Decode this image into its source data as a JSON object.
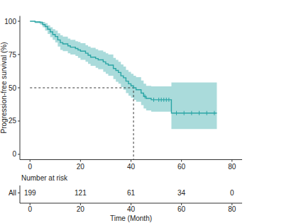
{
  "chart_data": {
    "type": "survival",
    "y_label": "Progression-free survival (%)",
    "x_label": "Time (Month)",
    "xlim": [
      -4,
      84
    ],
    "xticks": [
      0,
      20,
      40,
      60,
      80
    ],
    "ylim": [
      -4,
      104
    ],
    "yticks": [
      0,
      25,
      50,
      75,
      100
    ],
    "x": [
      0,
      2,
      4,
      5,
      6,
      7,
      8,
      9,
      10,
      11,
      12,
      13,
      15,
      16,
      18,
      19,
      20,
      22,
      23,
      24,
      26,
      27,
      29,
      30,
      31,
      33,
      34,
      35,
      36,
      37,
      38,
      39,
      40,
      41,
      42,
      44,
      45,
      46,
      48,
      56,
      74
    ],
    "series": [
      {
        "name": "All",
        "color": "#2aa5a5",
        "values": [
          100,
          99.5,
          99,
          97.5,
          96,
          94,
          92,
          90,
          88.5,
          86,
          84,
          83,
          81.5,
          80.5,
          79.5,
          78.5,
          77.5,
          76,
          74.5,
          73,
          72,
          71,
          69.5,
          68,
          67,
          64.5,
          63,
          61.5,
          59,
          57.5,
          55,
          53,
          51.5,
          50,
          48.5,
          46,
          43.5,
          42,
          41,
          31,
          31
        ],
        "upper": [
          100,
          100,
          100,
          99.5,
          98.5,
          97,
          95.5,
          94,
          93,
          91,
          89.5,
          88.5,
          87,
          86,
          85,
          84.5,
          83.5,
          82,
          81,
          80,
          79,
          78,
          77,
          76,
          75,
          72.5,
          71,
          69.5,
          67.5,
          66,
          63.5,
          62,
          60.5,
          59,
          58,
          55.5,
          53,
          51.5,
          51,
          54,
          54
        ],
        "lower": [
          100,
          98.5,
          97.5,
          95.5,
          93,
          90.5,
          88,
          86,
          84,
          81,
          78.5,
          77.5,
          76,
          75,
          74,
          72.5,
          71,
          69.5,
          68,
          66.5,
          65,
          64,
          62,
          60.5,
          59,
          56.5,
          54.5,
          53,
          50.5,
          48.5,
          46,
          44,
          42.5,
          41,
          39.5,
          37,
          34.5,
          33,
          32,
          19,
          19
        ],
        "censored": {
          "x": [
            45.5,
            49,
            51,
            52,
            53,
            54,
            55,
            58,
            61,
            64,
            67,
            70,
            73
          ],
          "values": [
            43.5,
            41,
            41,
            41,
            41,
            41,
            41,
            31,
            31,
            31,
            31,
            31,
            31
          ]
        }
      }
    ],
    "median": {
      "x": 41,
      "y": 50
    },
    "risk_table": {
      "title": "Number at risk",
      "x": [
        0,
        20,
        40,
        60,
        80
      ],
      "rows": [
        {
          "name": "All",
          "values": [
            199,
            121,
            61,
            34,
            0
          ]
        }
      ]
    }
  }
}
